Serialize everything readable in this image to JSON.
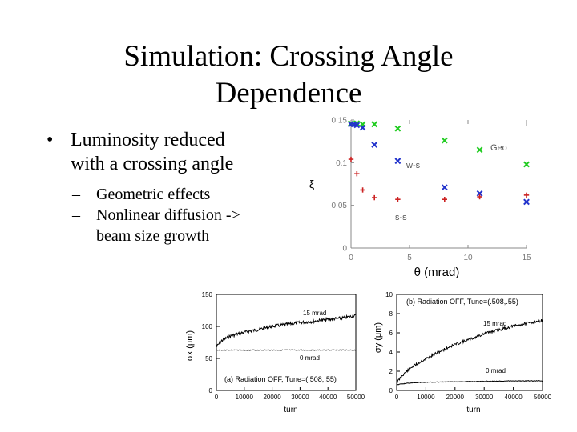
{
  "slide": {
    "title_line1": "Simulation: Crossing Angle",
    "title_line2": "Dependence",
    "bullet1_line1": "Luminosity reduced",
    "bullet1_line2": "with a crossing angle",
    "sub1": "Geometric effects",
    "sub2_line1": "Nonlinear diffusion ->",
    "sub2_line2": "beam size growth",
    "bullet_symbol": "•",
    "dash_symbol": "–"
  },
  "chart_data": [
    {
      "type": "scatter",
      "xlabel": "θ (mrad)",
      "ylabel": "ξ",
      "xlim": [
        0,
        15
      ],
      "ylim": [
        0,
        0.15
      ],
      "xticks": [
        "0",
        "5",
        "10",
        "15"
      ],
      "yticks": [
        "0",
        "0.05",
        "0.1",
        "0.15"
      ],
      "annotations": [
        "Geo",
        "w-s",
        "s-s"
      ],
      "series": [
        {
          "marker": "x",
          "color": "#22cc22",
          "x": [
            0,
            0.5,
            1,
            2,
            4,
            8,
            11,
            15
          ],
          "y": [
            0.146,
            0.146,
            0.145,
            0.145,
            0.14,
            0.126,
            0.115,
            0.098
          ]
        },
        {
          "marker": "x",
          "color": "#2233cc",
          "x": [
            0,
            0.25,
            0.5,
            1,
            2,
            4,
            8,
            11,
            15
          ],
          "y": [
            0.145,
            0.145,
            0.144,
            0.141,
            0.121,
            0.102,
            0.071,
            0.064,
            0.054
          ]
        },
        {
          "marker": "+",
          "color": "#cc2222",
          "x": [
            0,
            0.5,
            1,
            2,
            4,
            8,
            11,
            15
          ],
          "y": [
            0.104,
            0.087,
            0.068,
            0.059,
            0.057,
            0.057,
            0.06,
            0.062
          ]
        }
      ]
    },
    {
      "type": "line",
      "xlabel": "turn",
      "ylabel": "σx (μm)",
      "xlim": [
        0,
        50000
      ],
      "ylim": [
        0,
        150
      ],
      "xticks": [
        "0",
        "10000",
        "20000",
        "30000",
        "40000",
        "50000"
      ],
      "yticks": [
        "0",
        "50",
        "100",
        "150"
      ],
      "legend": "(a)  Radiation OFF, Tune=(.508,.55)",
      "series": [
        {
          "name": "15 mrad",
          "x": [
            0,
            2000,
            5000,
            10000,
            15000,
            20000,
            25000,
            30000,
            35000,
            40000,
            45000,
            50000
          ],
          "y": [
            68,
            78,
            85,
            91,
            95,
            100,
            103,
            106,
            108,
            111,
            113,
            117
          ]
        },
        {
          "name": "0 mrad",
          "x": [
            0,
            50000
          ],
          "y": [
            63,
            63
          ]
        }
      ]
    },
    {
      "type": "line",
      "xlabel": "turn",
      "ylabel": "σy (μm)",
      "xlim": [
        0,
        50000
      ],
      "ylim": [
        0,
        10
      ],
      "xticks": [
        "0",
        "10000",
        "20000",
        "30000",
        "40000",
        "50000"
      ],
      "yticks": [
        "0",
        "2",
        "4",
        "6",
        "8",
        "10"
      ],
      "legend": "(b)  Radiation OFF, Tune=(.508,.55)",
      "series": [
        {
          "name": "15 mrad",
          "x": [
            0,
            2000,
            5000,
            10000,
            15000,
            20000,
            25000,
            30000,
            35000,
            40000,
            45000,
            50000
          ],
          "y": [
            0.8,
            1.6,
            2.4,
            3.3,
            4.1,
            4.8,
            5.3,
            5.9,
            6.3,
            6.7,
            7.0,
            7.3
          ]
        },
        {
          "name": "0 mrad",
          "x": [
            0,
            5000,
            10000,
            20000,
            30000,
            40000,
            50000
          ],
          "y": [
            0.6,
            0.8,
            0.85,
            0.9,
            0.95,
            1.0,
            1.0
          ]
        }
      ]
    }
  ]
}
